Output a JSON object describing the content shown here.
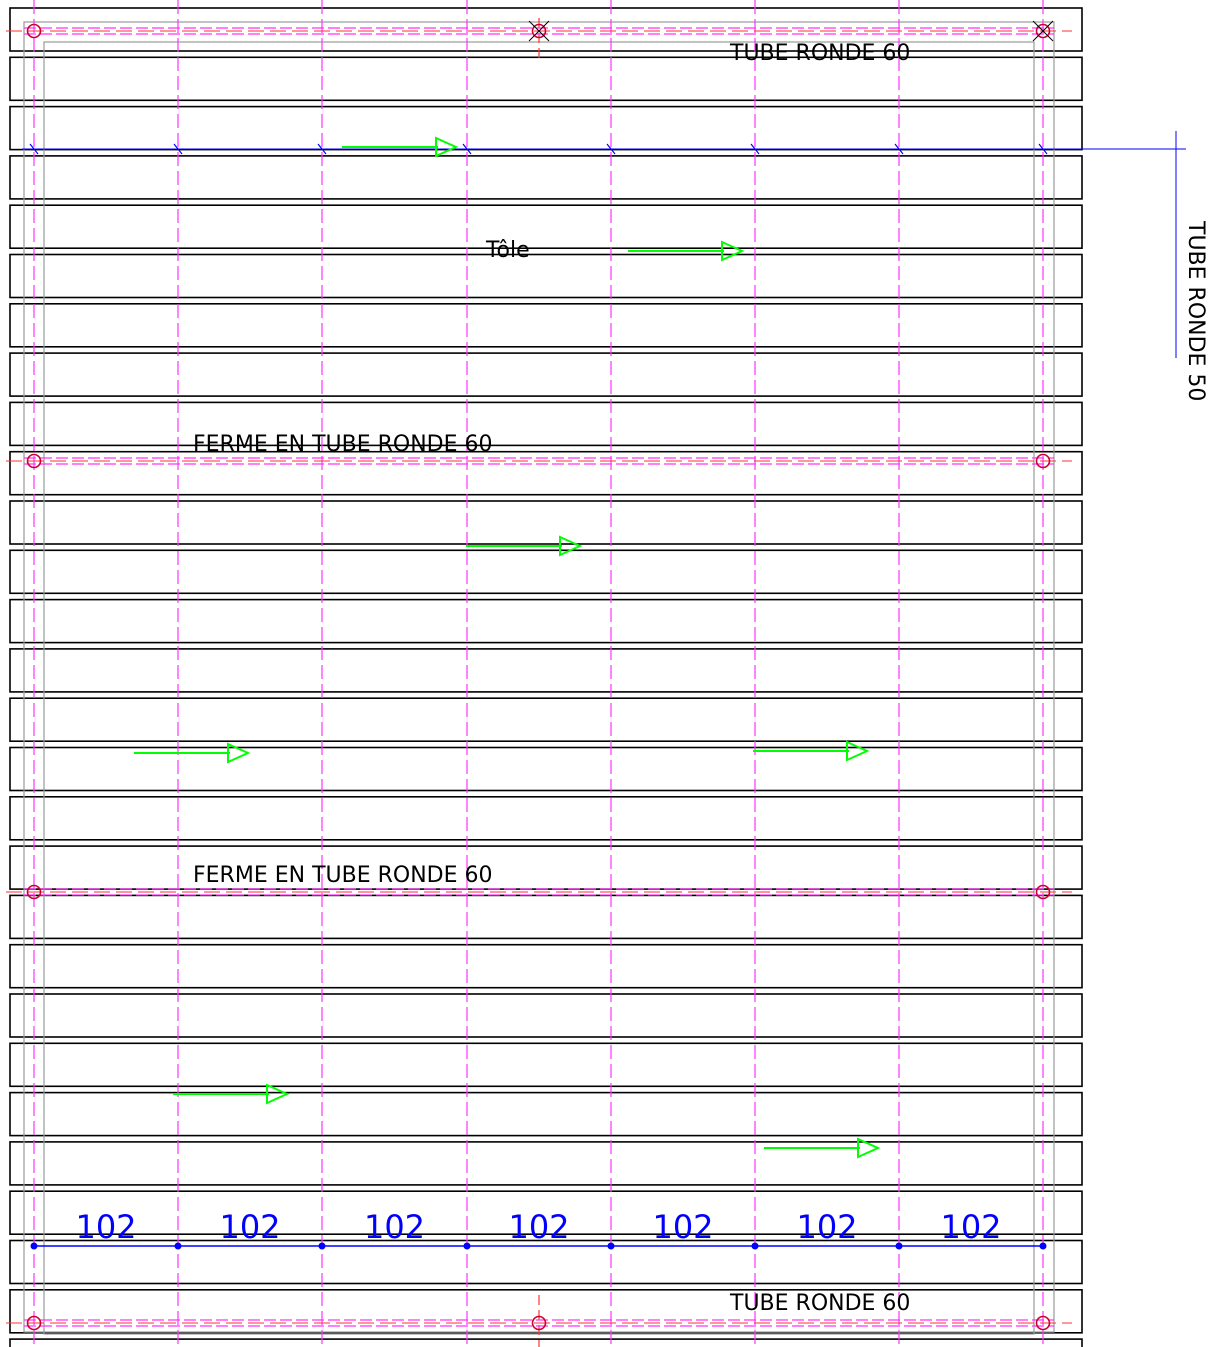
{
  "drawing": {
    "labels": {
      "top_tube": "TUBE RONDE 60",
      "bottom_tube": "TUBE RONDE 60",
      "side_tube": "TUBE RONDE 50",
      "sheet": "Tôle",
      "truss_1": "FERME EN TUBE RONDE 60",
      "truss_2": "FERME EN TUBE RONDE 60"
    },
    "dimensions": [
      "102",
      "102",
      "102",
      "102",
      "102",
      "102",
      "102"
    ],
    "colors": {
      "outline": "#000000",
      "frame": "#9a9a9a",
      "axis": "#ff33ff",
      "node": "#cc0033",
      "cut": "#ff3333",
      "dimension": "#0000ff",
      "direction_arrow": "#00ff00"
    }
  }
}
